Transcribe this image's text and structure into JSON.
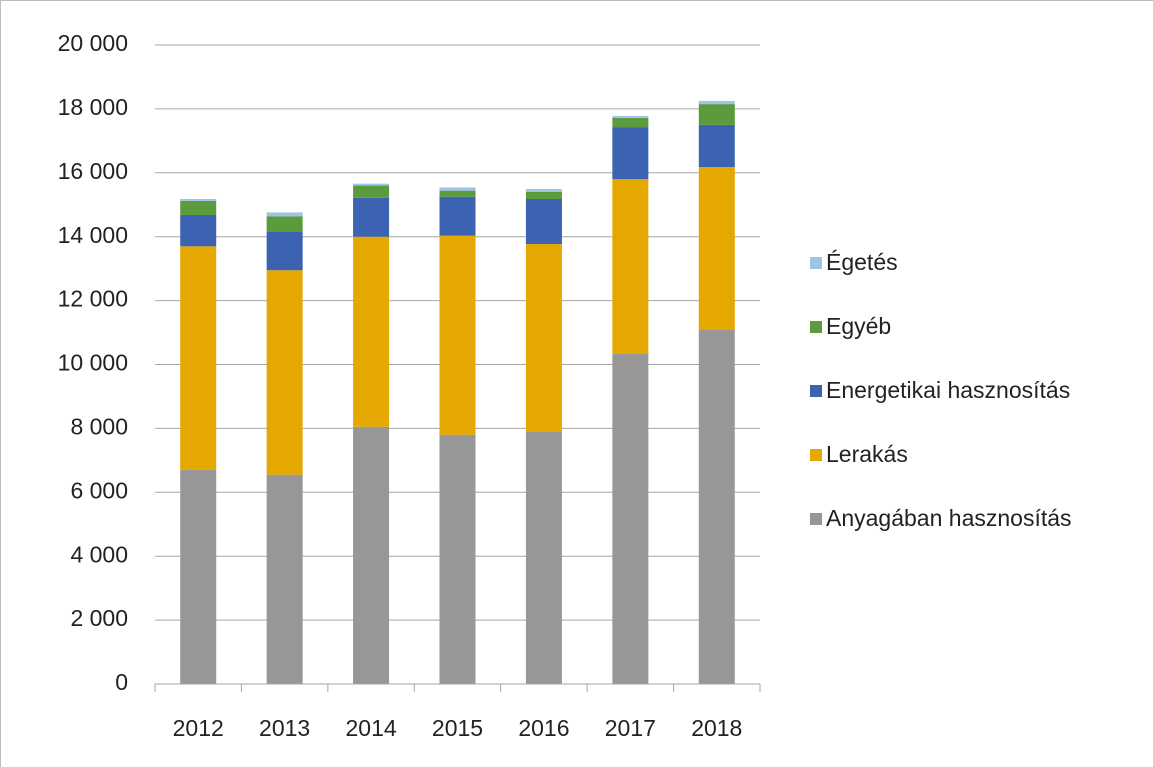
{
  "chart_data": {
    "type": "stacked_bar",
    "categories": [
      "2012",
      "2013",
      "2014",
      "2015",
      "2016",
      "2017",
      "2018"
    ],
    "series": [
      {
        "name": "Anyagában hasznosítás",
        "color": "#979797",
        "values": [
          6700,
          6550,
          8050,
          7800,
          7900,
          10350,
          11100
        ]
      },
      {
        "name": "Lerakás",
        "color": "#e5a800",
        "values": [
          7000,
          6400,
          5950,
          6230,
          5870,
          5450,
          5080
        ]
      },
      {
        "name": "Energetikai hasznosítás",
        "color": "#3b63b1",
        "values": [
          980,
          1220,
          1220,
          1220,
          1410,
          1630,
          1320
        ]
      },
      {
        "name": "Egyéb",
        "color": "#5c9b3d",
        "values": [
          440,
          470,
          380,
          190,
          220,
          290,
          650
        ]
      },
      {
        "name": "Égetés",
        "color": "#9dc3e6",
        "values": [
          60,
          120,
          60,
          100,
          90,
          60,
          100
        ]
      }
    ],
    "ylim": [
      0,
      20000
    ],
    "yticks": [
      0,
      {
        "value": 2000,
        "label": "2 000"
      },
      {
        "value": 4000,
        "label": "4 000"
      },
      {
        "value": 6000,
        "label": "6 000"
      },
      {
        "value": 8000,
        "label": "8 000"
      },
      {
        "value": 10000,
        "label": "10 000"
      },
      {
        "value": 12000,
        "label": "12 000"
      },
      {
        "value": 14000,
        "label": "14 000"
      },
      {
        "value": 16000,
        "label": "16 000"
      },
      {
        "value": 18000,
        "label": "18 000"
      },
      {
        "value": 20000,
        "label": "20 000"
      }
    ],
    "grid": true,
    "legend": "right"
  }
}
